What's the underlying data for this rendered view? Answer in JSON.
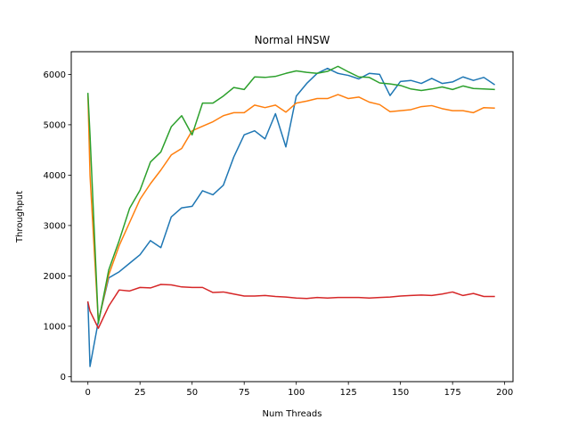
{
  "chart_data": {
    "type": "line",
    "title": "Normal HNSW",
    "xlabel": "Num Threads",
    "ylabel": "Throughput",
    "xlim": [
      -8,
      204
    ],
    "ylim": [
      -100,
      6450
    ],
    "xticks": [
      0,
      25,
      50,
      75,
      100,
      125,
      150,
      175,
      200
    ],
    "yticks": [
      0,
      1000,
      2000,
      3000,
      4000,
      5000,
      6000
    ],
    "grid": false,
    "legend": "none",
    "x": [
      0,
      1,
      5,
      10,
      15,
      20,
      25,
      30,
      35,
      40,
      45,
      50,
      55,
      60,
      65,
      70,
      75,
      80,
      85,
      90,
      95,
      100,
      105,
      110,
      115,
      120,
      125,
      130,
      135,
      140,
      145,
      150,
      155,
      160,
      165,
      170,
      175,
      180,
      185,
      190,
      195
    ],
    "series": [
      {
        "color": "#1f77b4",
        "values": [
          1480,
          200,
          1100,
          1960,
          2080,
          2250,
          2420,
          2700,
          2560,
          3170,
          3350,
          3380,
          3690,
          3610,
          3800,
          4360,
          4800,
          4880,
          4720,
          5220,
          4560,
          5570,
          5820,
          6020,
          6120,
          6020,
          5980,
          5910,
          6020,
          6000,
          5580,
          5860,
          5880,
          5820,
          5920,
          5820,
          5850,
          5950,
          5880,
          5940,
          5800
        ]
      },
      {
        "color": "#ff7f0e",
        "values": [
          5600,
          4000,
          1080,
          2020,
          2600,
          3060,
          3520,
          3830,
          4100,
          4400,
          4530,
          4880,
          4970,
          5060,
          5180,
          5240,
          5240,
          5390,
          5340,
          5390,
          5250,
          5430,
          5470,
          5520,
          5520,
          5600,
          5520,
          5550,
          5450,
          5400,
          5260,
          5280,
          5300,
          5360,
          5380,
          5320,
          5280,
          5280,
          5240,
          5340,
          5330
        ]
      },
      {
        "color": "#2ca02c",
        "values": [
          5620,
          4800,
          1060,
          2120,
          2700,
          3340,
          3700,
          4260,
          4460,
          4960,
          5180,
          4800,
          5430,
          5430,
          5570,
          5740,
          5700,
          5950,
          5940,
          5960,
          6020,
          6070,
          6040,
          6020,
          6060,
          6160,
          6050,
          5950,
          5940,
          5830,
          5810,
          5780,
          5710,
          5680,
          5710,
          5750,
          5700,
          5770,
          5720,
          5710,
          5700
        ]
      },
      {
        "color": "#d62728",
        "values": [
          1480,
          1300,
          960,
          1400,
          1720,
          1700,
          1770,
          1760,
          1830,
          1820,
          1780,
          1770,
          1770,
          1670,
          1680,
          1640,
          1600,
          1600,
          1610,
          1590,
          1580,
          1560,
          1550,
          1570,
          1560,
          1570,
          1570,
          1570,
          1560,
          1570,
          1580,
          1600,
          1610,
          1620,
          1610,
          1640,
          1680,
          1610,
          1650,
          1590,
          1590
        ]
      }
    ]
  }
}
